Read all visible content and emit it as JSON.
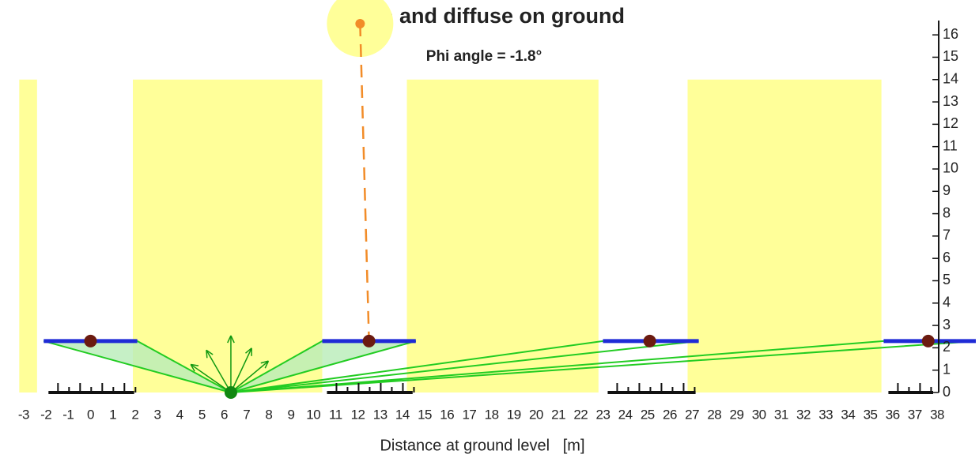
{
  "chart_data": {
    "type": "shading",
    "title": "Beam and diffuse on ground",
    "subtitle": "Phi angle = -1.8°",
    "x_label": "Distance at ground level   [m]",
    "xlim": [
      -3.3,
      38.3
    ],
    "ylim": [
      0,
      16.5
    ],
    "xticks": [
      -3,
      -2,
      -1,
      0,
      1,
      2,
      3,
      4,
      5,
      6,
      7,
      8,
      9,
      10,
      11,
      12,
      13,
      14,
      15,
      16,
      17,
      18,
      19,
      20,
      21,
      22,
      23,
      24,
      25,
      26,
      27,
      28,
      29,
      30,
      31,
      32,
      33,
      34,
      35,
      36,
      37,
      38
    ],
    "yticks": [
      0,
      1,
      2,
      3,
      4,
      5,
      6,
      7,
      8,
      9,
      10,
      11,
      12,
      13,
      14,
      15,
      16
    ],
    "sunlit": [
      {
        "x": [
          -3.2,
          -2.4
        ],
        "top": 14
      },
      {
        "x": [
          1.9,
          10.4
        ],
        "top": 14
      },
      {
        "x": [
          14.2,
          22.8
        ],
        "top": 14
      },
      {
        "x": [
          26.8,
          35.5
        ],
        "top": 14
      }
    ],
    "rows": [
      {
        "x": [
          -2.1,
          2.1
        ],
        "center": 0,
        "height": 2.3
      },
      {
        "x": [
          10.4,
          14.6
        ],
        "center": 12.5,
        "height": 2.3
      },
      {
        "x": [
          23.0,
          27.3
        ],
        "center": 25.1,
        "height": 2.3
      },
      {
        "x": [
          35.6,
          39.8
        ],
        "center": 37.6,
        "height": 2.3
      }
    ],
    "sun": {
      "x": 12.1,
      "y": 16.5
    },
    "observer": {
      "x": 6.3,
      "y": 0
    },
    "colors": {
      "sunlit": "#ffff99",
      "row": "#1f2bd6",
      "dot": "#6b1a10",
      "view": "#22cc22",
      "sun": "#f28c28"
    }
  }
}
